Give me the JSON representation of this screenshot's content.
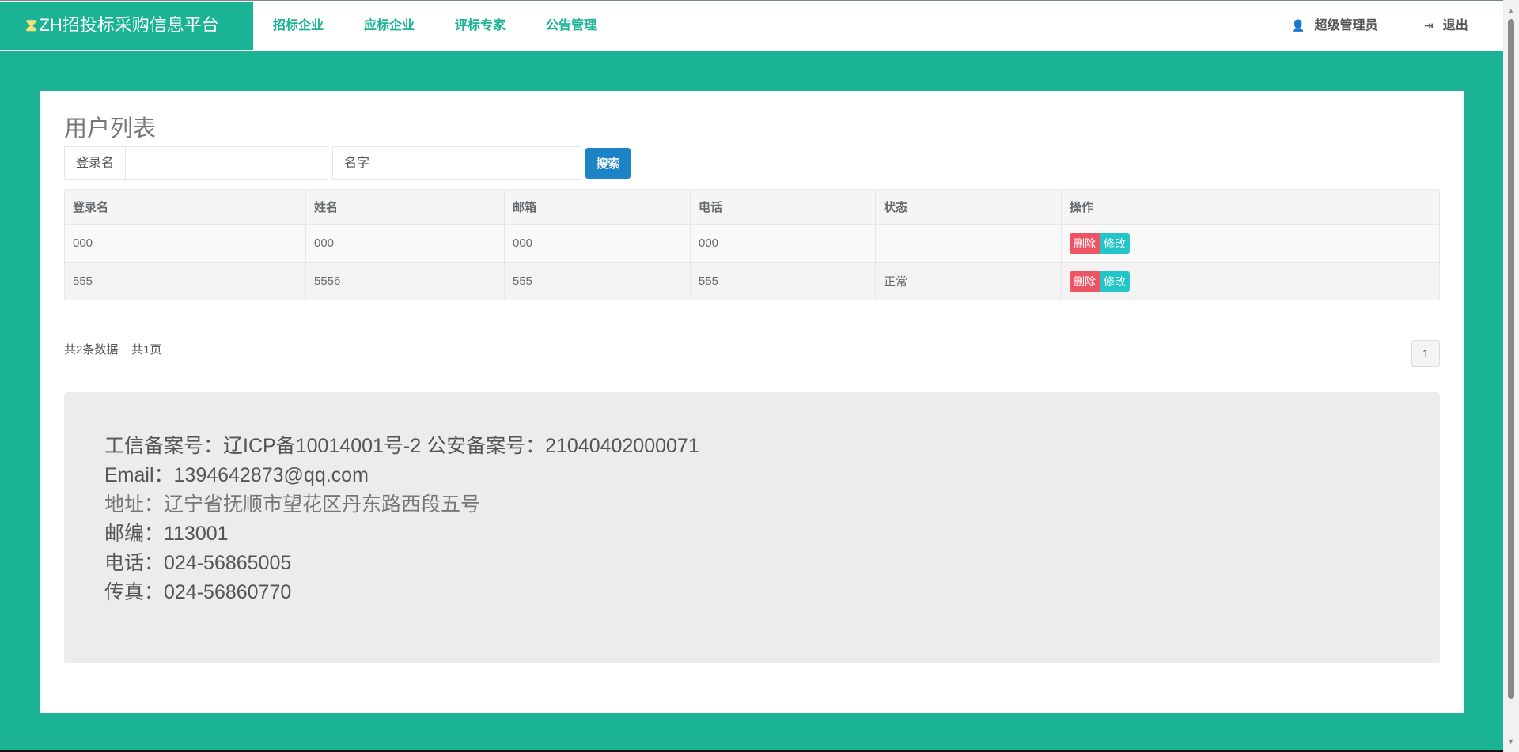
{
  "header": {
    "logo_mark": "ZH",
    "logo_text": "ZH招投标采购信息平台",
    "nav": [
      "招标企业",
      "应标企业",
      "评标专家",
      "公告管理"
    ],
    "user": "超级管理员",
    "logout": "退出"
  },
  "page": {
    "title": "用户列表"
  },
  "search": {
    "login_label": "登录名",
    "name_label": "名字",
    "button": "搜索",
    "login_value": "",
    "name_value": ""
  },
  "table": {
    "columns": [
      "登录名",
      "姓名",
      "邮箱",
      "电话",
      "状态",
      "操作"
    ],
    "rows": [
      [
        "000",
        "000",
        "000",
        "000",
        ""
      ],
      [
        "555",
        "5556",
        "555",
        "555",
        "正常"
      ]
    ],
    "delete_label": "删除",
    "edit_label": "修改"
  },
  "pagination": {
    "total": "共2条数据",
    "pages": "共1页",
    "current": "1"
  },
  "footer": {
    "icp": "工信备案号：辽ICP备10014001号-2 公安备案号：21040402000071",
    "email": "Email：1394642873@qq.com",
    "address": "地址：辽宁省抚顺市望花区丹东路西段五号",
    "zip": "邮编：113001",
    "phone": "电话：024-56865005",
    "fax": "传真：024-56860770"
  },
  "colors": {
    "brand": "#1ab394",
    "primary": "#1c84c6",
    "danger": "#ed5565",
    "info": "#23c6c8"
  }
}
